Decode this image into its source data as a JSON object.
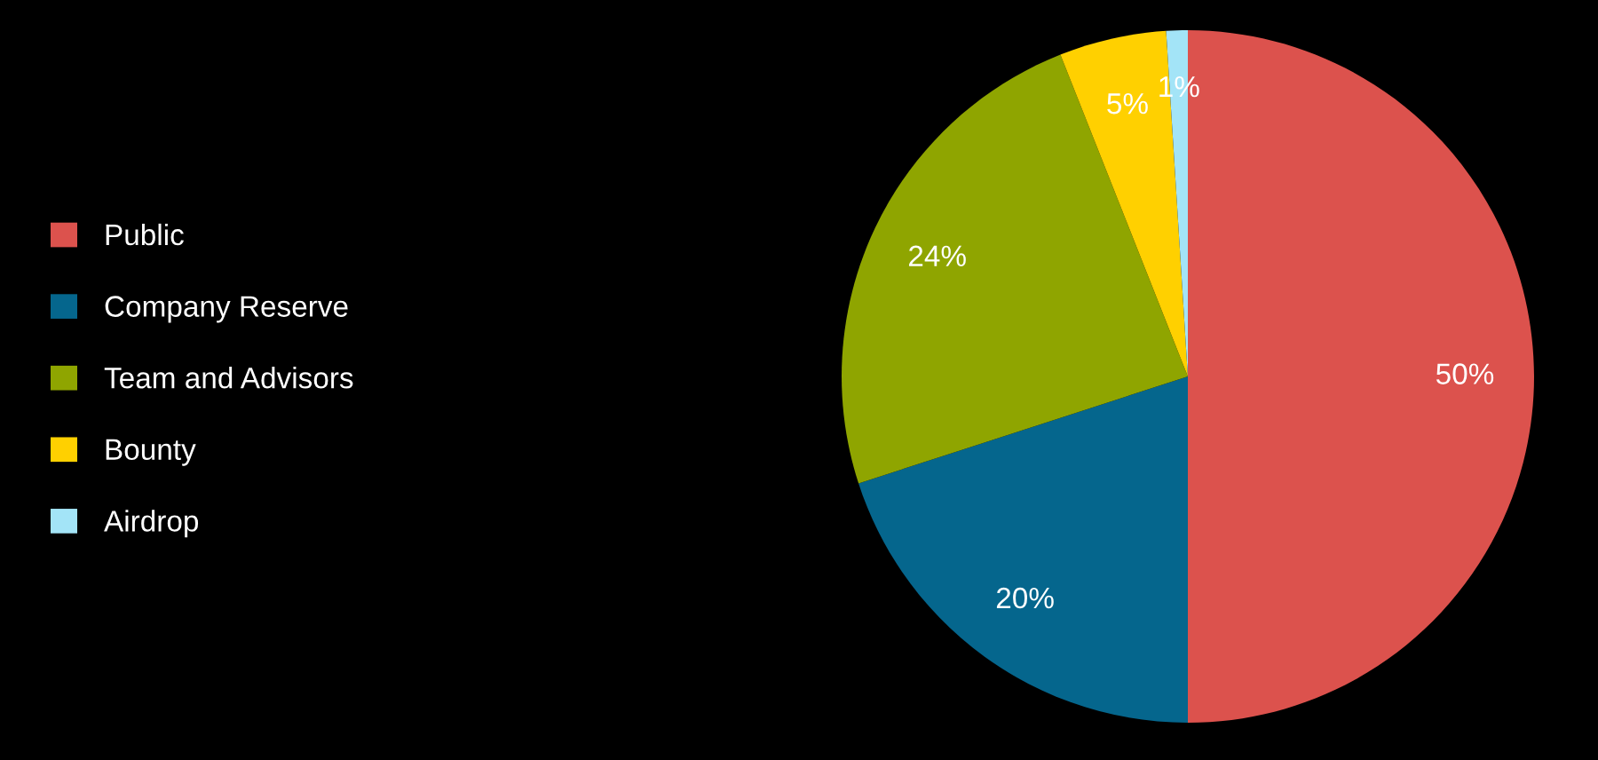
{
  "chart_data": {
    "type": "pie",
    "categories": [
      "Public",
      "Company Reserve",
      "Team and Advisors",
      "Bounty",
      "Airdrop"
    ],
    "values": [
      50,
      20,
      24,
      5,
      1
    ],
    "colors": [
      "#dc524d",
      "#05668d",
      "#8fa500",
      "#ffd000",
      "#a3e4f7"
    ],
    "value_labels": [
      "50%",
      "20%",
      "24%",
      "5%",
      "1%"
    ],
    "legend": "left"
  }
}
